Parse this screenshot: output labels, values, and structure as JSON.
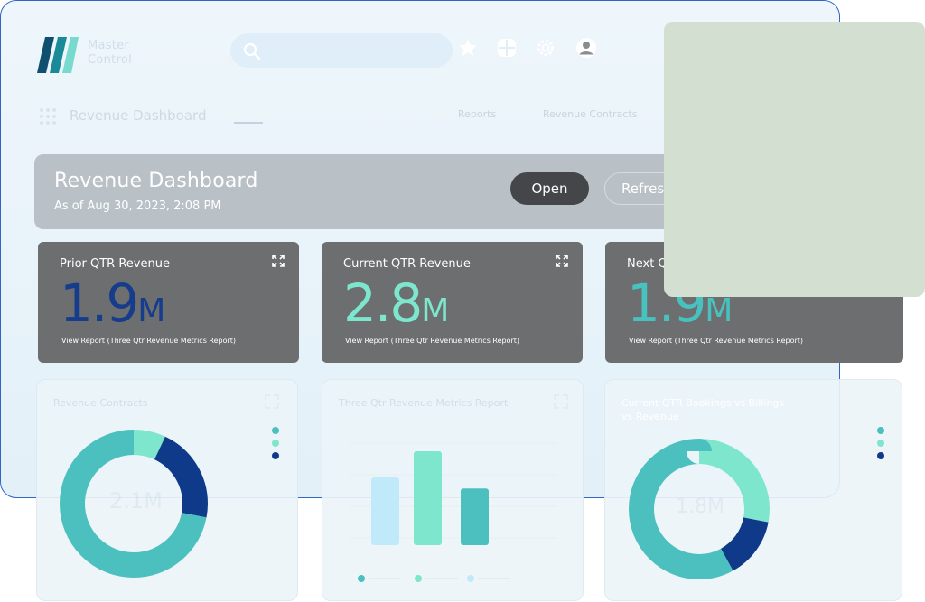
{
  "app": {
    "logo_text_1": "Master",
    "logo_text_2": "Control"
  },
  "search": {
    "placeholder": ""
  },
  "icons": {
    "logo": "logo-icon",
    "search": "search-icon",
    "favorites": "star-icon",
    "apps": "grid-icon",
    "settings": "gear-icon",
    "user": "user-icon",
    "expand": "expand-icon"
  },
  "breadcrumb": {
    "title": "Revenue Dashboard",
    "link_1": "Reports",
    "link_2": "Revenue Contracts"
  },
  "header": {
    "title": "Revenue Dashboard",
    "subtitle": "As of Aug 30, 2023, 2:08 PM",
    "open_label": "Open",
    "refresh_label": "Refresh"
  },
  "kpis": [
    {
      "title": "Prior QTR Revenue",
      "value": "1.9",
      "unit": "M",
      "color": "#163c8c",
      "link": "View Report (Three Qtr Revenue Metrics Report)"
    },
    {
      "title": "Current QTR Revenue",
      "value": "2.8",
      "unit": "M",
      "color": "#7de6cd",
      "link": "View Report (Three Qtr Revenue Metrics Report)"
    },
    {
      "title": "Next QTR Revenue",
      "value": "1.9",
      "unit": "M",
      "color": "#48c2be",
      "link": "View Report (Three Qtr Revenue Metrics Report)"
    }
  ],
  "panels": {
    "left": {
      "title": "Revenue Contracts",
      "center_value": "2.1M"
    },
    "middle": {
      "title": "Three Qtr Revenue Metrics Report"
    },
    "right": {
      "title_1": "Current QTR Bookings vs Billings",
      "title_2": "vs Revenue",
      "center_value": "1.8M"
    }
  },
  "colors": {
    "teal": "#4cc0bf",
    "mint": "#7de6cd",
    "navy": "#0f3a8a",
    "light_blue": "#c0eafa",
    "kpi_bg": "#6c6e70"
  },
  "chart_data": [
    {
      "type": "pie",
      "name": "donut-left",
      "values": [
        0.07,
        0.21,
        0.72
      ],
      "colors": [
        "#7de6cd",
        "#0f3a8a",
        "#4cc0bf"
      ]
    },
    {
      "type": "bar",
      "name": "bars-middle",
      "categories": [
        "",
        "",
        ""
      ],
      "values": [
        0.49,
        0.68,
        0.41
      ],
      "colors": [
        "#c0eafa",
        "#7de6cd",
        "#4cc0bf"
      ]
    },
    {
      "type": "pie",
      "name": "donut-right",
      "values": [
        0.28,
        0.14,
        0.58
      ],
      "colors": [
        "#7de6cd",
        "#0f3a8a",
        "#4cc0bf"
      ]
    }
  ]
}
